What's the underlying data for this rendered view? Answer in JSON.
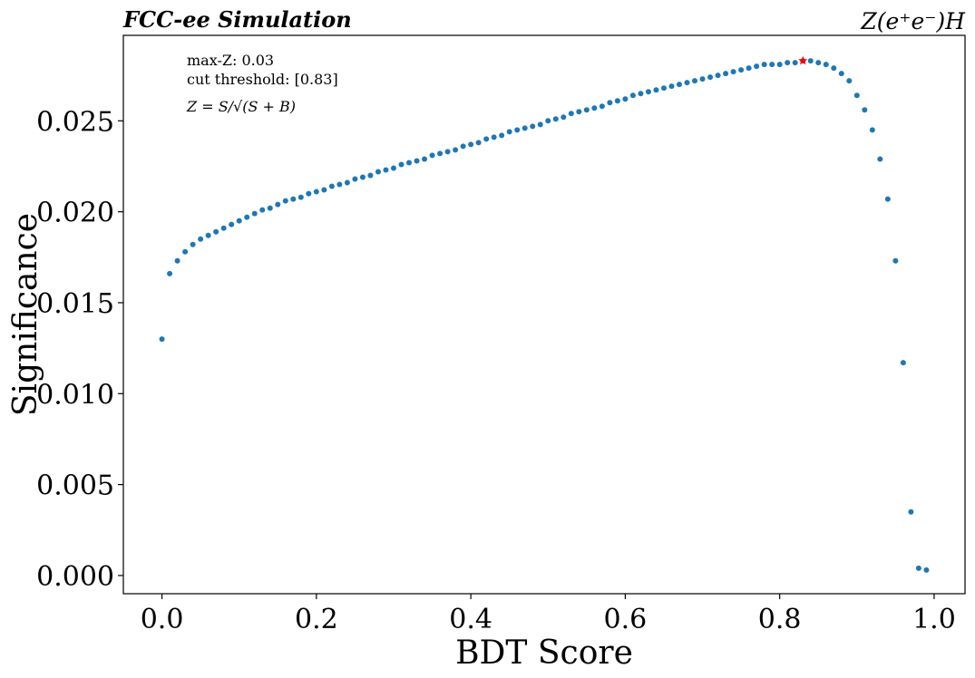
{
  "chart_data": {
    "type": "scatter",
    "title_left": "FCC-ee Simulation",
    "title_right": "Z(e⁺e⁻)H",
    "xlabel": "BDT Score",
    "ylabel": "Significance",
    "xlim": [
      -0.05,
      1.04
    ],
    "ylim": [
      -0.001,
      0.0297
    ],
    "xticks": [
      0.0,
      0.2,
      0.4,
      0.6,
      0.8,
      1.0
    ],
    "xtick_labels": [
      "0.0",
      "0.2",
      "0.4",
      "0.6",
      "0.8",
      "1.0"
    ],
    "yticks": [
      0.0,
      0.005,
      0.01,
      0.015,
      0.02,
      0.025
    ],
    "ytick_labels": [
      "0.000",
      "0.005",
      "0.010",
      "0.015",
      "0.020",
      "0.025"
    ],
    "grid": false,
    "annotations": [
      "max-Z: 0.03",
      "cut threshold: [0.83]",
      "Z = S/√(S + B)"
    ],
    "colors": {
      "points": "#1f77b4",
      "max_marker": "#ff0000"
    },
    "max_point": {
      "x": 0.83,
      "y": 0.0283
    },
    "series": [
      {
        "x": [
          0.0,
          0.01,
          0.02,
          0.03,
          0.04,
          0.05,
          0.06,
          0.07,
          0.08,
          0.09,
          0.1,
          0.11,
          0.12,
          0.13,
          0.14,
          0.15,
          0.16,
          0.17,
          0.18,
          0.19,
          0.2,
          0.21,
          0.22,
          0.23,
          0.24,
          0.25,
          0.26,
          0.27,
          0.28,
          0.29,
          0.3,
          0.31,
          0.32,
          0.33,
          0.34,
          0.35,
          0.36,
          0.37,
          0.38,
          0.39,
          0.4,
          0.41,
          0.42,
          0.43,
          0.44,
          0.45,
          0.46,
          0.47,
          0.48,
          0.49,
          0.5,
          0.51,
          0.52,
          0.53,
          0.54,
          0.55,
          0.56,
          0.57,
          0.58,
          0.59,
          0.6,
          0.61,
          0.62,
          0.63,
          0.64,
          0.65,
          0.66,
          0.67,
          0.68,
          0.69,
          0.7,
          0.71,
          0.72,
          0.73,
          0.74,
          0.75,
          0.76,
          0.77,
          0.78,
          0.79,
          0.8,
          0.81,
          0.82,
          0.83,
          0.84,
          0.85,
          0.86,
          0.87,
          0.88,
          0.89,
          0.9,
          0.91,
          0.92,
          0.93,
          0.94,
          0.95,
          0.96,
          0.97,
          0.98,
          0.99
        ],
        "y": [
          0.013,
          0.0166,
          0.0173,
          0.0178,
          0.0182,
          0.0185,
          0.0187,
          0.0189,
          0.0191,
          0.0193,
          0.0195,
          0.0197,
          0.0199,
          0.0201,
          0.0202,
          0.0204,
          0.0206,
          0.0207,
          0.0208,
          0.021,
          0.0211,
          0.0212,
          0.0214,
          0.0215,
          0.0216,
          0.0218,
          0.0219,
          0.022,
          0.0222,
          0.0223,
          0.0224,
          0.0226,
          0.0227,
          0.0228,
          0.0229,
          0.0231,
          0.0232,
          0.0233,
          0.0234,
          0.0236,
          0.0237,
          0.0238,
          0.024,
          0.0241,
          0.0242,
          0.0244,
          0.0245,
          0.0246,
          0.0247,
          0.0248,
          0.025,
          0.0251,
          0.0252,
          0.0254,
          0.0255,
          0.0256,
          0.0257,
          0.0258,
          0.026,
          0.0261,
          0.0262,
          0.0264,
          0.0265,
          0.0266,
          0.0267,
          0.0268,
          0.0269,
          0.027,
          0.0271,
          0.0272,
          0.0273,
          0.0274,
          0.0275,
          0.0276,
          0.0277,
          0.0278,
          0.0279,
          0.028,
          0.0281,
          0.0281,
          0.0281,
          0.0282,
          0.0282,
          0.0283,
          0.0283,
          0.0282,
          0.0281,
          0.0279,
          0.0276,
          0.0272,
          0.0264,
          0.0256,
          0.0245,
          0.0229,
          0.0207,
          0.0173,
          0.0117,
          0.0035,
          0.0004,
          0.0003
        ]
      }
    ]
  }
}
